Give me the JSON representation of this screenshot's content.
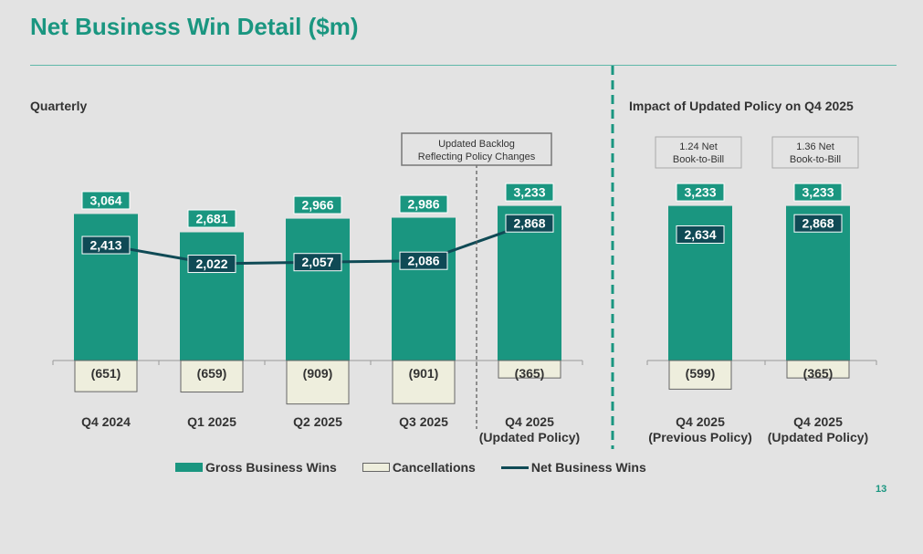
{
  "title": "Net Business Win Detail ($m)",
  "page_number": "13",
  "colors": {
    "gross": "#1a9680",
    "cancel_fill": "#eeeedd",
    "net": "#0f4a55",
    "accent": "#1a9680"
  },
  "chart_data": [
    {
      "type": "bar",
      "title": "Quarterly",
      "categories": [
        "Q4 2024",
        "Q1 2025",
        "Q2 2025",
        "Q3 2025",
        "Q4 2025 (Updated Policy)"
      ],
      "category_lines": [
        [
          "Q4 2024"
        ],
        [
          "Q1 2025"
        ],
        [
          "Q2 2025"
        ],
        [
          "Q3 2025"
        ],
        [
          "Q4 2025",
          "(Updated Policy)"
        ]
      ],
      "series": [
        {
          "name": "Gross Business Wins",
          "values": [
            3064,
            2681,
            2966,
            2986,
            3233
          ],
          "labels": [
            "3,064",
            "2,681",
            "2,966",
            "2,986",
            "3,233"
          ]
        },
        {
          "name": "Cancellations",
          "values": [
            -651,
            -659,
            -909,
            -901,
            -365
          ],
          "labels": [
            "(651)",
            "(659)",
            "(909)",
            "(901)",
            "(365)"
          ]
        },
        {
          "name": "Net Business Wins",
          "type": "line",
          "values": [
            2413,
            2022,
            2057,
            2086,
            2868
          ],
          "labels": [
            "2,413",
            "2,022",
            "2,057",
            "2,086",
            "2,868"
          ]
        }
      ],
      "annotation": {
        "lines": [
          "Updated Backlog",
          "Reflecting Policy Changes"
        ],
        "between": [
          "Q3 2025",
          "Q4 2025 (Updated Policy)"
        ]
      }
    },
    {
      "type": "bar",
      "title": "Impact of Updated Policy on Q4 2025",
      "categories": [
        "Q4 2025 (Previous Policy)",
        "Q4 2025 (Updated Policy)"
      ],
      "category_lines": [
        [
          "Q4 2025",
          "(Previous Policy)"
        ],
        [
          "Q4 2025",
          "(Updated Policy)"
        ]
      ],
      "series": [
        {
          "name": "Gross Business Wins",
          "values": [
            3233,
            3233
          ],
          "labels": [
            "3,233",
            "3,233"
          ]
        },
        {
          "name": "Cancellations",
          "values": [
            -599,
            -365
          ],
          "labels": [
            "(599)",
            "(365)"
          ]
        },
        {
          "name": "Net Business Wins",
          "values": [
            2634,
            2868
          ],
          "labels": [
            "2,634",
            "2,868"
          ]
        }
      ],
      "callouts": [
        [
          "1.24 Net",
          "Book-to-Bill"
        ],
        [
          "1.36 Net",
          "Book-to-Bill"
        ]
      ]
    }
  ],
  "legend": [
    "Gross Business Wins",
    "Cancellations",
    "Net Business Wins"
  ]
}
